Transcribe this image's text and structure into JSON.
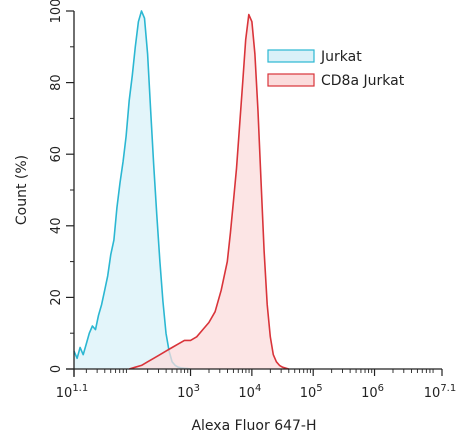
{
  "chart_data": {
    "type": "area",
    "xlabel": "Alexa Fluor 647-H",
    "ylabel": "Count (%)",
    "x_scale": "log",
    "xlim": [
      1.1,
      7.1
    ],
    "ylim": [
      0,
      100
    ],
    "x_ticks": [
      {
        "value": 1.1,
        "label": "10",
        "sup": "1.1"
      },
      {
        "value": 3,
        "label": "10",
        "sup": "3"
      },
      {
        "value": 4,
        "label": "10",
        "sup": "4"
      },
      {
        "value": 5,
        "label": "10",
        "sup": "5"
      },
      {
        "value": 6,
        "label": "10",
        "sup": "6"
      },
      {
        "value": 7.1,
        "label": "10",
        "sup": "7.1"
      }
    ],
    "y_ticks": [
      {
        "value": 0,
        "label": "0"
      },
      {
        "value": 20,
        "label": "20"
      },
      {
        "value": 40,
        "label": "40"
      },
      {
        "value": 60,
        "label": "60"
      },
      {
        "value": 80,
        "label": "80"
      },
      {
        "value": 100,
        "label": "100"
      }
    ],
    "legend_position": "top-right",
    "series": [
      {
        "name": "Jurkat",
        "stroke": "#2bb7d2",
        "fill": "#d9f1f8",
        "x_log10": [
          1.1,
          1.15,
          1.2,
          1.25,
          1.3,
          1.35,
          1.4,
          1.45,
          1.5,
          1.55,
          1.6,
          1.65,
          1.7,
          1.75,
          1.8,
          1.85,
          1.9,
          1.95,
          2.0,
          2.05,
          2.1,
          2.15,
          2.2,
          2.25,
          2.3,
          2.35,
          2.4,
          2.45,
          2.5,
          2.55,
          2.6,
          2.65,
          2.7,
          2.75,
          2.8,
          2.85,
          2.9,
          2.95,
          3.0
        ],
        "y": [
          5,
          3,
          6,
          4,
          7,
          10,
          12,
          11,
          15,
          18,
          22,
          26,
          32,
          36,
          45,
          52,
          58,
          65,
          75,
          82,
          90,
          97,
          100,
          98,
          88,
          72,
          57,
          43,
          30,
          19,
          10,
          5,
          2,
          1,
          0.5,
          0.3,
          0.2,
          0.1,
          0
        ]
      },
      {
        "name": "CD8a Jurkat",
        "stroke": "#d9343a",
        "fill": "#fbdcdc",
        "x_log10": [
          2.0,
          2.1,
          2.2,
          2.3,
          2.4,
          2.5,
          2.6,
          2.7,
          2.8,
          2.9,
          3.0,
          3.1,
          3.2,
          3.3,
          3.4,
          3.5,
          3.6,
          3.65,
          3.7,
          3.75,
          3.8,
          3.85,
          3.9,
          3.95,
          4.0,
          4.05,
          4.1,
          4.15,
          4.2,
          4.25,
          4.3,
          4.35,
          4.4,
          4.45,
          4.5,
          4.6
        ],
        "y": [
          0,
          0.5,
          1,
          2,
          3,
          4,
          5,
          6,
          7,
          8,
          8,
          9,
          11,
          13,
          16,
          22,
          30,
          38,
          47,
          56,
          68,
          80,
          92,
          99,
          97,
          88,
          72,
          52,
          33,
          18,
          9,
          4,
          2,
          1,
          0.5,
          0
        ]
      }
    ]
  }
}
